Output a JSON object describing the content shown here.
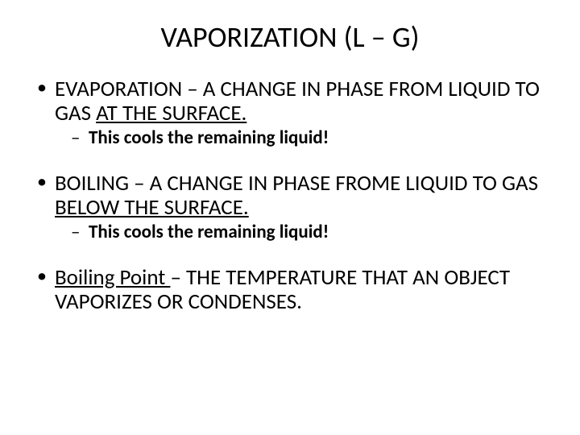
{
  "title": "VAPORIZATION (L – G)",
  "bullets": [
    {
      "line_pre": "EVAPORATION – A CHANGE IN PHASE FROM LIQUID TO GAS ",
      "line_underlined": "AT THE SURFACE.",
      "sub": "This cools the remaining liquid!"
    },
    {
      "line_pre": "BOILING – A CHANGE IN PHASE FROME LIQUID TO GAS ",
      "line_underlined": "BELOW THE SURFACE.",
      "sub": "This cools the remaining liquid!"
    },
    {
      "term_underlined": "Boiling Point ",
      "rest": "– THE TEMPERATURE THAT AN OBJECT VAPORIZES OR CONDENSES."
    }
  ],
  "style": {
    "background_color": "#ffffff",
    "text_color": "#000000",
    "title_fontsize": 36,
    "body_fontsize": 27,
    "sub_fontsize": 23,
    "font_family": "Calibri, Arial, sans-serif"
  }
}
